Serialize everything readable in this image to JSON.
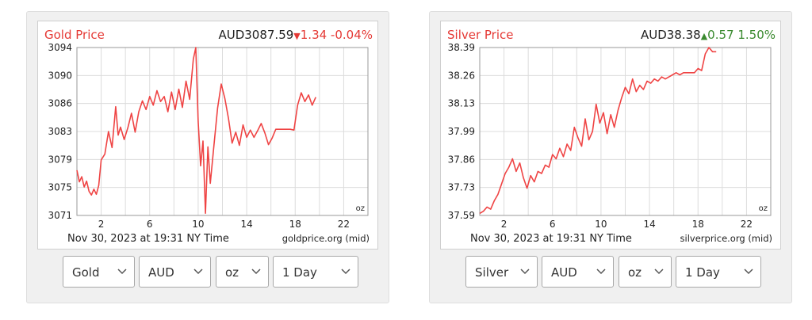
{
  "panels": [
    {
      "id": "gold",
      "controls": {
        "metal": "Gold",
        "currency": "AUD",
        "unit": "oz",
        "range": "1 Day"
      },
      "chart_data": {
        "type": "line",
        "title": "Gold Price",
        "price": "AUD3087.59",
        "change": "1.34",
        "change_pct": "-0.04%",
        "direction": "down",
        "change_color": "#e53935",
        "title_color": "#e53935",
        "line_color": "#ef4444",
        "unit_label": "oz",
        "date_label": "Nov 30, 2023 at 19:31 NY Time",
        "source_label": "goldprice.org (mid)",
        "ylim": [
          3071,
          3094
        ],
        "y_ticks": [
          "3094",
          "3090",
          "3086",
          "3083",
          "3079",
          "3075",
          "3071"
        ],
        "xlim": [
          0,
          24
        ],
        "x_ticks": [
          "2",
          "6",
          "10",
          "14",
          "18",
          "22"
        ],
        "grid": true,
        "x": [
          0.0,
          0.2,
          0.4,
          0.6,
          0.8,
          1.0,
          1.2,
          1.4,
          1.6,
          1.8,
          2.0,
          2.3,
          2.6,
          2.9,
          3.2,
          3.4,
          3.6,
          3.9,
          4.2,
          4.5,
          4.8,
          5.1,
          5.4,
          5.7,
          6.0,
          6.3,
          6.6,
          6.9,
          7.2,
          7.5,
          7.8,
          8.1,
          8.4,
          8.7,
          9.0,
          9.3,
          9.6,
          9.8,
          10.0,
          10.2,
          10.4,
          10.6,
          10.8,
          11.0,
          11.3,
          11.6,
          11.9,
          12.2,
          12.5,
          12.8,
          13.1,
          13.4,
          13.7,
          14.0,
          14.3,
          14.6,
          14.9,
          15.2,
          15.5,
          15.8,
          16.1,
          16.4,
          16.7,
          17.0,
          17.3,
          17.6,
          17.9,
          18.2,
          18.5,
          18.8,
          19.1,
          19.4,
          19.7
        ],
        "y": [
          3077.2,
          3075.6,
          3076.3,
          3074.9,
          3075.7,
          3074.3,
          3073.8,
          3074.6,
          3073.9,
          3075.1,
          3078.6,
          3079.4,
          3082.5,
          3080.3,
          3085.9,
          3082.0,
          3083.1,
          3081.4,
          3083.0,
          3085.0,
          3082.4,
          3085.2,
          3086.7,
          3085.5,
          3087.3,
          3086.1,
          3088.1,
          3086.6,
          3087.3,
          3085.2,
          3087.9,
          3085.5,
          3088.3,
          3085.8,
          3089.4,
          3086.9,
          3092.4,
          3094.0,
          3083.9,
          3077.8,
          3081.2,
          3071.3,
          3080.4,
          3075.4,
          3080.6,
          3085.7,
          3089.0,
          3087.0,
          3084.3,
          3080.9,
          3082.4,
          3080.6,
          3083.4,
          3081.7,
          3082.7,
          3081.7,
          3082.6,
          3083.6,
          3082.3,
          3080.7,
          3081.6,
          3082.8,
          3082.8,
          3082.8,
          3082.8,
          3082.8,
          3082.7,
          3086.1,
          3087.8,
          3086.6,
          3087.5,
          3086.1,
          3087.2
        ]
      }
    },
    {
      "id": "silver",
      "controls": {
        "metal": "Silver",
        "currency": "AUD",
        "unit": "oz",
        "range": "1 Day"
      },
      "chart_data": {
        "type": "line",
        "title": "Silver Price",
        "price": "AUD38.38",
        "change": "0.57",
        "change_pct": "1.50%",
        "direction": "up",
        "change_color": "#3a8a2f",
        "title_color": "#e53935",
        "line_color": "#ef4444",
        "unit_label": "oz",
        "date_label": "Nov 30, 2023 at 19:31 NY Time",
        "source_label": "silverprice.org (mid)",
        "ylim": [
          37.59,
          38.39
        ],
        "y_ticks": [
          "38.39",
          "38.26",
          "38.13",
          "37.99",
          "37.86",
          "37.73",
          "37.59"
        ],
        "xlim": [
          0,
          24
        ],
        "x_ticks": [
          "2",
          "6",
          "10",
          "14",
          "18",
          "22"
        ],
        "grid": true,
        "x": [
          0.0,
          0.3,
          0.6,
          0.9,
          1.2,
          1.5,
          1.8,
          2.1,
          2.4,
          2.7,
          3.0,
          3.3,
          3.6,
          3.9,
          4.2,
          4.5,
          4.8,
          5.1,
          5.4,
          5.7,
          6.0,
          6.3,
          6.6,
          6.9,
          7.2,
          7.5,
          7.8,
          8.1,
          8.4,
          8.7,
          9.0,
          9.3,
          9.6,
          9.9,
          10.2,
          10.5,
          10.8,
          11.1,
          11.4,
          11.7,
          12.0,
          12.3,
          12.6,
          12.9,
          13.2,
          13.5,
          13.8,
          14.1,
          14.4,
          14.7,
          15.0,
          15.3,
          15.6,
          15.9,
          16.2,
          16.5,
          16.8,
          17.1,
          17.4,
          17.7,
          18.0,
          18.3,
          18.6,
          18.9,
          19.2,
          19.5
        ],
        "y": [
          37.6,
          37.61,
          37.63,
          37.62,
          37.66,
          37.69,
          37.74,
          37.79,
          37.82,
          37.86,
          37.8,
          37.84,
          37.77,
          37.72,
          37.78,
          37.75,
          37.8,
          37.79,
          37.83,
          37.82,
          37.88,
          37.86,
          37.91,
          37.87,
          37.93,
          37.9,
          38.01,
          37.96,
          37.92,
          38.05,
          37.95,
          37.99,
          38.12,
          38.03,
          38.08,
          37.98,
          38.07,
          38.01,
          38.09,
          38.15,
          38.2,
          38.17,
          38.24,
          38.18,
          38.21,
          38.19,
          38.23,
          38.22,
          38.24,
          38.23,
          38.25,
          38.24,
          38.25,
          38.26,
          38.27,
          38.26,
          38.27,
          38.27,
          38.27,
          38.27,
          38.29,
          38.28,
          38.36,
          38.39,
          38.37,
          38.37
        ]
      }
    }
  ]
}
